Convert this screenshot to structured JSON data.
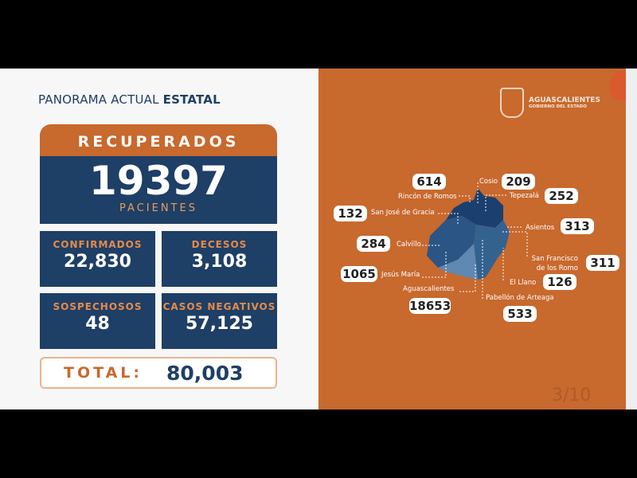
{
  "header": {
    "title_light": "PANORAMA ACTUAL ",
    "title_bold": "ESTATAL"
  },
  "recuperados": {
    "label": "RECUPERADOS",
    "value": "19397",
    "unit": "PACIENTES"
  },
  "stats": [
    {
      "label": "CONFIRMADOS",
      "value": "22,830"
    },
    {
      "label": "DECESOS",
      "value": "3,108"
    },
    {
      "label": "SOSPECHOSOS",
      "value": "48"
    },
    {
      "label": "CASOS NEGATIVOS",
      "value": "57,125"
    }
  ],
  "total": {
    "label": "TOTAL:",
    "value": "80,003"
  },
  "logo": {
    "name": "AGUASCALIENTES",
    "sub": "GOBIERNO DEL ESTADO"
  },
  "municipalities": [
    {
      "name": "Rincón de Romos",
      "value": "614"
    },
    {
      "name": "Cosio",
      "value": "209"
    },
    {
      "name": "Tepezalá",
      "value": "252"
    },
    {
      "name": "San José de Gracia",
      "value": "132"
    },
    {
      "name": "Asientos",
      "value": "313"
    },
    {
      "name": "Calvillo",
      "value": "284"
    },
    {
      "name": "San Francisco de los Romo",
      "value": "311"
    },
    {
      "name": "Jesús María",
      "value": "1065"
    },
    {
      "name": "El Llano",
      "value": "126"
    },
    {
      "name": "Aguascalientes",
      "value": "18653"
    },
    {
      "name": "Pabellón de Arteaga",
      "value": "533"
    }
  ],
  "colors": {
    "orange": "#c8692e",
    "navy": "#1e3f66"
  },
  "page_indicator": "3/10"
}
